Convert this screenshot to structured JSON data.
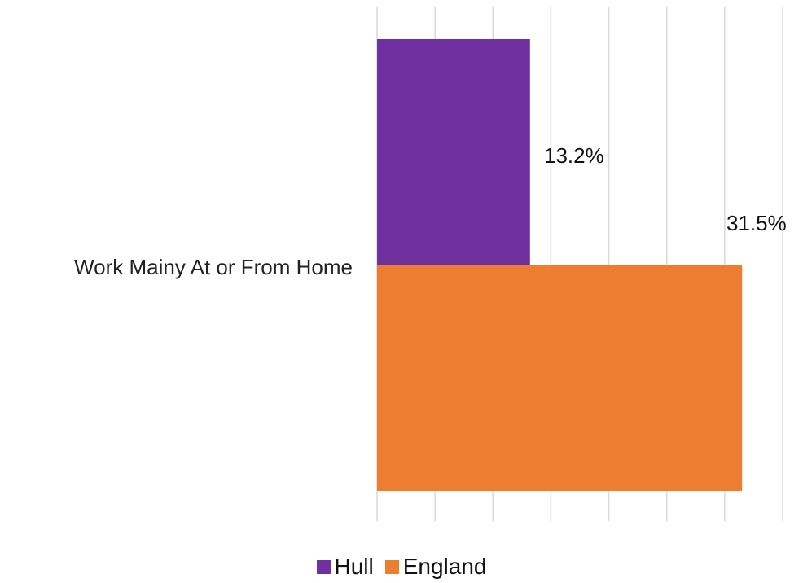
{
  "chart_data": {
    "type": "bar",
    "orientation": "horizontal",
    "title": "",
    "categories": [
      "Work Mainy At or From Home"
    ],
    "series": [
      {
        "name": "Hull",
        "values": [
          13.2
        ],
        "color": "#7030A0",
        "label": "13.2%"
      },
      {
        "name": "England",
        "values": [
          31.5
        ],
        "color": "#ED7D31",
        "label": "31.5%"
      }
    ],
    "xlim": [
      0,
      35
    ],
    "grid": true,
    "tick_labels_shown": false,
    "legend_position": "bottom"
  }
}
